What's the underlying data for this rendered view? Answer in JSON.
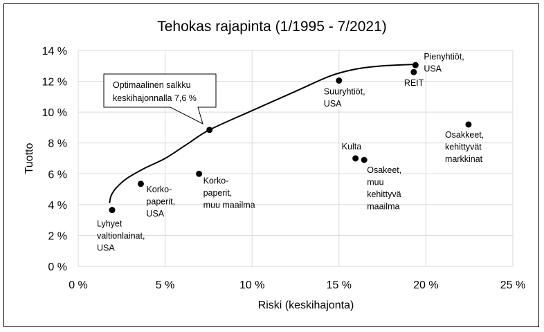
{
  "chart_data": {
    "type": "scatter",
    "title": "Tehokas rajapinta (1/1995 - 7/2021)",
    "xlabel": "Riski (keskihajonta)",
    "ylabel": "Tuotto",
    "xlim": [
      0,
      25
    ],
    "ylim": [
      0,
      14
    ],
    "x_ticks": [
      0,
      5,
      10,
      15,
      20,
      25
    ],
    "y_ticks": [
      0,
      2,
      4,
      6,
      8,
      10,
      12,
      14
    ],
    "x_tick_labels": [
      "0 %",
      "5 %",
      "10 %",
      "15 %",
      "20 %",
      "25 %"
    ],
    "y_tick_labels": [
      "0 %",
      "2 %",
      "4 %",
      "6 %",
      "8 %",
      "10 %",
      "12 %",
      "14 %"
    ],
    "grid": true,
    "points": [
      {
        "lines": [
          "Lyhyet",
          "valtionlainat,",
          "USA"
        ],
        "x": 1.95,
        "y": 3.65
      },
      {
        "lines": [
          "Korko-",
          "paperit,",
          "USA"
        ],
        "x": 3.6,
        "y": 5.35
      },
      {
        "lines": [
          "Korko-",
          "paperit,",
          "muu maailma"
        ],
        "x": 6.95,
        "y": 6.0
      },
      {
        "lines": [],
        "x": 7.55,
        "y": 8.85
      },
      {
        "lines": [
          "Suuryhtiöt,",
          "USA"
        ],
        "x": 15.0,
        "y": 12.05
      },
      {
        "lines": [
          "Pienyhtiöt,",
          "USA"
        ],
        "x": 19.4,
        "y": 13.05
      },
      {
        "lines": [
          "REIT"
        ],
        "x": 19.3,
        "y": 12.6
      },
      {
        "lines": [
          "Kulta"
        ],
        "x": 15.95,
        "y": 7.0
      },
      {
        "lines": [
          "Osakeet,",
          "muu",
          "kehittyvä",
          "maailma"
        ],
        "x": 16.45,
        "y": 6.9
      },
      {
        "lines": [
          "Osakkeet,",
          "kehittyvät",
          "markkinat"
        ],
        "x": 22.45,
        "y": 9.2
      }
    ],
    "frontier": {
      "x": [
        1.8,
        1.9,
        2.2,
        2.8,
        3.8,
        5.0,
        6.3,
        7.55,
        10.0,
        12.5,
        14.5,
        16.0,
        17.5,
        19.4
      ],
      "y": [
        4.1,
        4.6,
        5.1,
        5.7,
        6.35,
        7.0,
        7.95,
        8.85,
        10.1,
        11.35,
        12.35,
        12.8,
        13.0,
        13.1
      ]
    },
    "annotation": {
      "lines": [
        "Optimaalinen salkku",
        "keskihajonnalla 7,6 %"
      ],
      "target_point": 3
    }
  }
}
